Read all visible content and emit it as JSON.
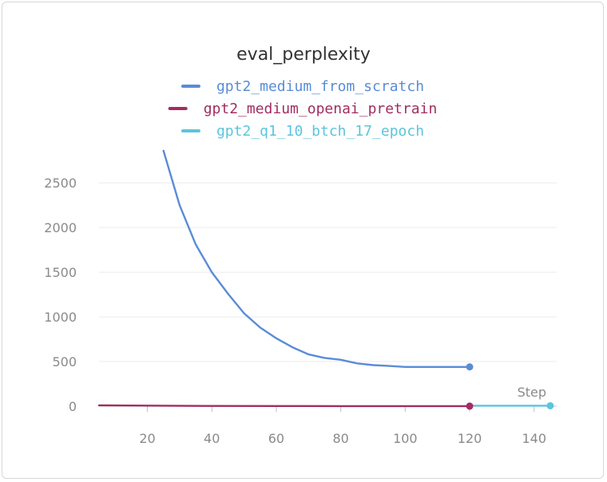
{
  "chart_data": {
    "type": "line",
    "title": "eval_perplexity",
    "xlabel": "Step",
    "ylabel": "",
    "xlim": [
      5,
      147
    ],
    "ylim": [
      0,
      2850
    ],
    "xticks": [
      20,
      40,
      60,
      80,
      100,
      120,
      140
    ],
    "yticks": [
      0,
      500,
      1000,
      1500,
      2000,
      2500
    ],
    "grid": true,
    "legend_position": "top-center",
    "series": [
      {
        "name": "gpt2_medium_from_scratch",
        "color": "#5a8cd6",
        "x": [
          25,
          30,
          35,
          40,
          45,
          50,
          55,
          60,
          65,
          70,
          75,
          80,
          85,
          90,
          95,
          100,
          105,
          110,
          115,
          120
        ],
        "y": [
          2860,
          2250,
          1810,
          1500,
          1260,
          1040,
          880,
          760,
          660,
          580,
          540,
          520,
          480,
          460,
          450,
          440,
          440,
          440,
          440,
          440
        ]
      },
      {
        "name": "gpt2_medium_openai_pretrain",
        "color": "#a12d63",
        "x": [
          5,
          20,
          40,
          60,
          80,
          100,
          120
        ],
        "y": [
          10,
          6,
          3,
          2,
          1,
          1,
          1
        ]
      },
      {
        "name": "gpt2_q1_10_btch_17_epoch",
        "color": "#5cc4dd",
        "x": [
          120,
          145
        ],
        "y": [
          5,
          5
        ]
      }
    ]
  }
}
